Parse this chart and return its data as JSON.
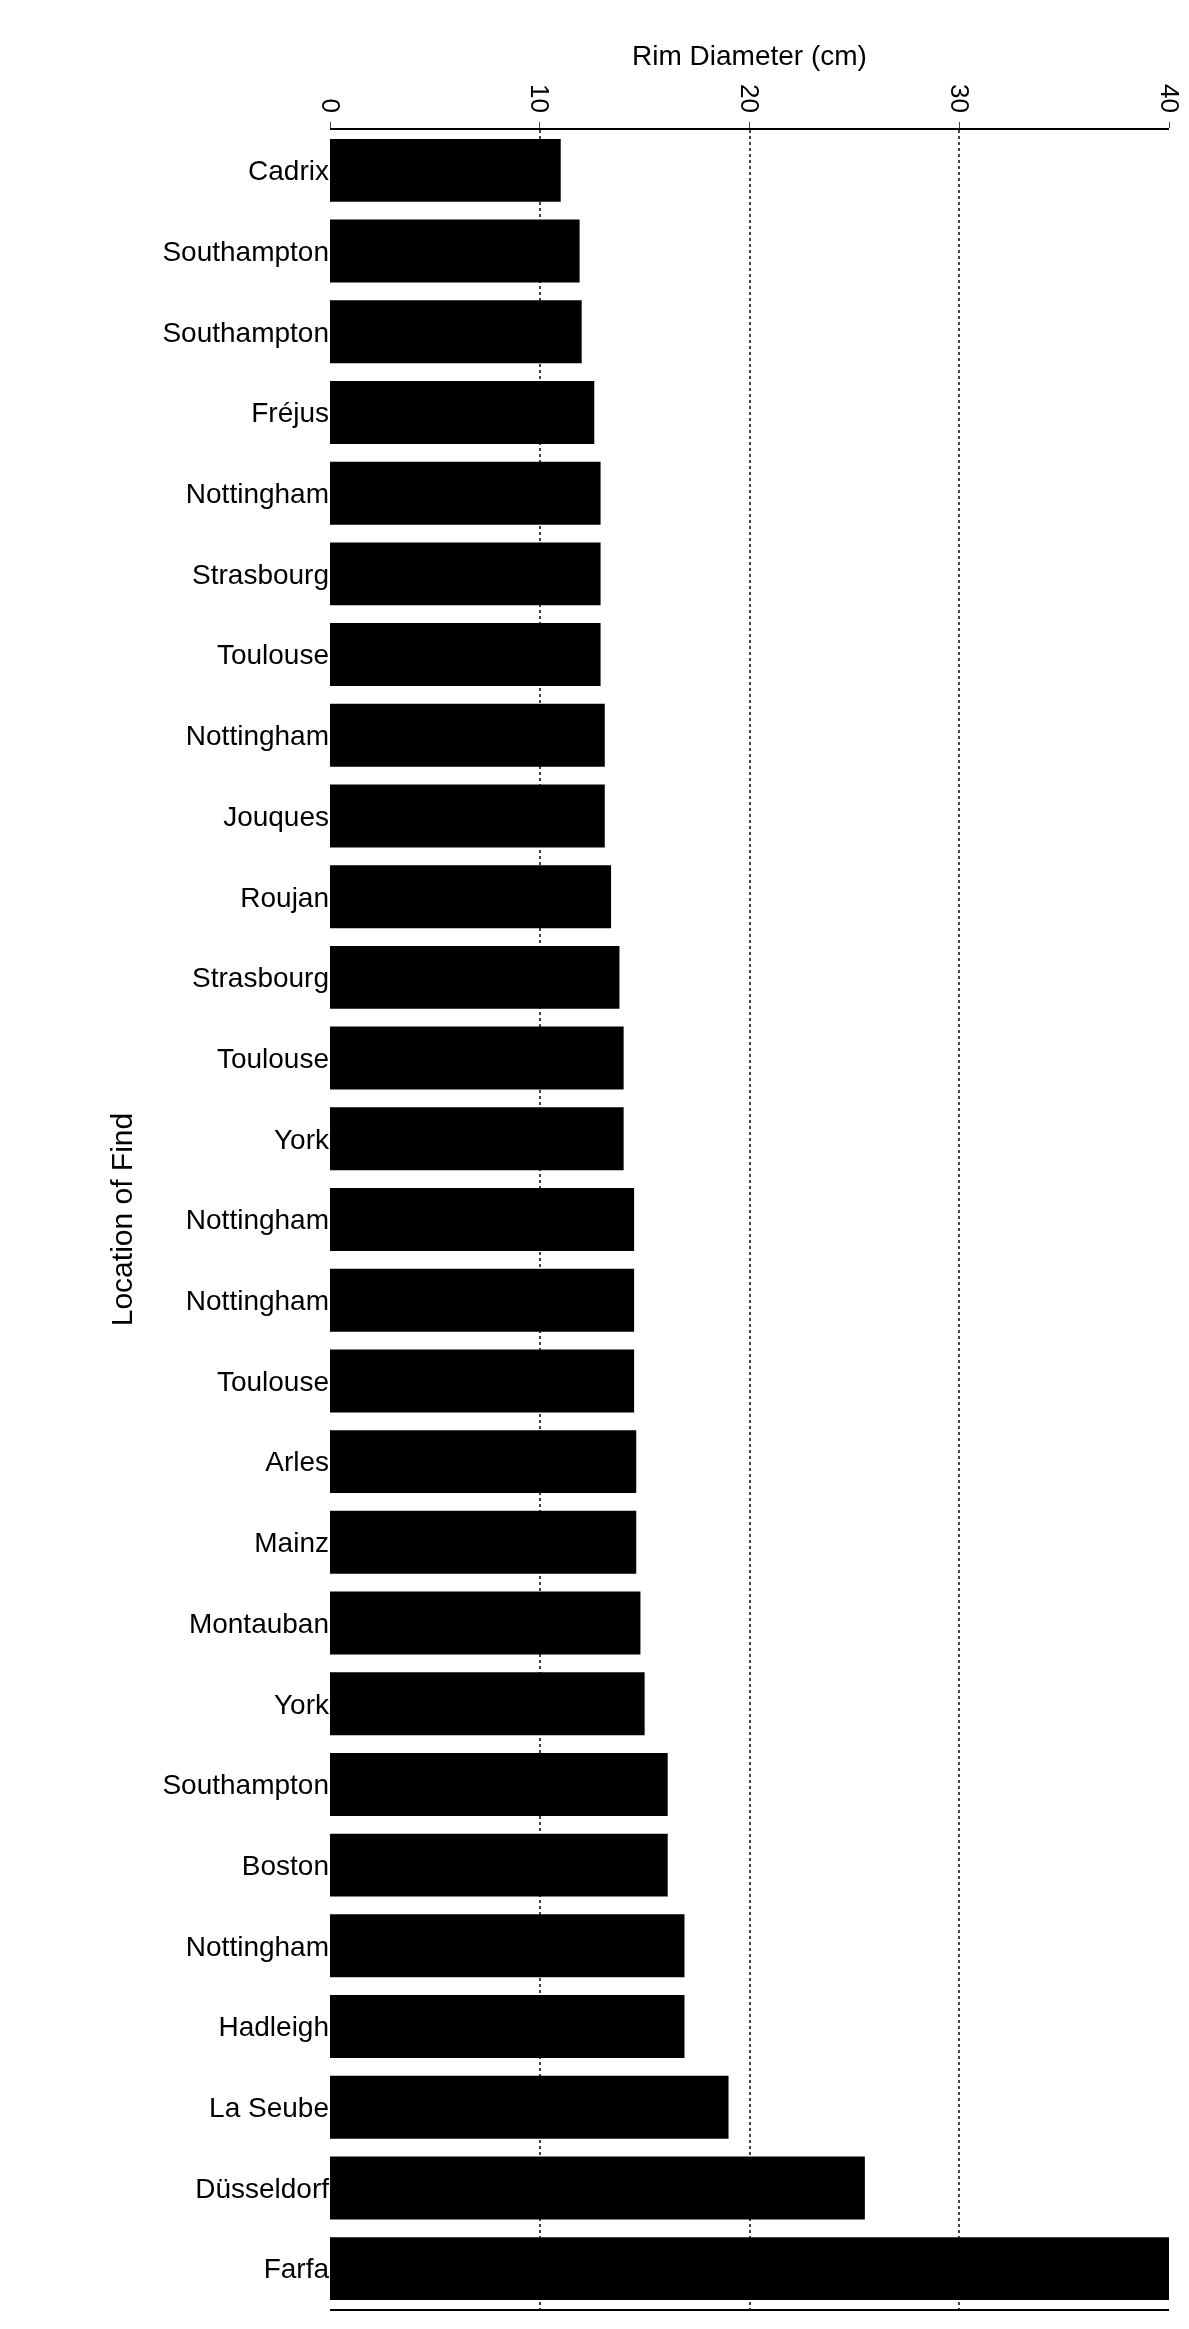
{
  "chart_data": {
    "type": "bar",
    "orientation": "horizontal",
    "xlabel": "Rim Diameter (cm)",
    "ylabel": "Location of Find",
    "categories": [
      "Cadrix",
      "Southampton",
      "Southampton",
      "Fréjus",
      "Nottingham",
      "Strasbourg",
      "Toulouse",
      "Nottingham",
      "Jouques",
      "Roujan",
      "Strasbourg",
      "Toulouse",
      "York",
      "Nottingham",
      "Nottingham",
      "Toulouse",
      "Arles",
      "Mainz",
      "Montauban",
      "York",
      "Southampton",
      "Boston",
      "Nottingham",
      "Hadleigh",
      "La Seube",
      "Düsseldorf",
      "Farfa"
    ],
    "values": [
      11.0,
      11.9,
      12.0,
      12.6,
      12.9,
      12.9,
      12.9,
      13.1,
      13.1,
      13.4,
      13.8,
      14.0,
      14.0,
      14.5,
      14.5,
      14.5,
      14.6,
      14.6,
      14.8,
      15.0,
      16.1,
      16.1,
      16.9,
      16.9,
      19.0,
      25.5,
      40
    ],
    "color": "#000000",
    "xlim": [
      0,
      40
    ],
    "xticks": [
      0,
      10,
      20,
      30,
      40
    ],
    "grid": "x",
    "legend": false
  }
}
